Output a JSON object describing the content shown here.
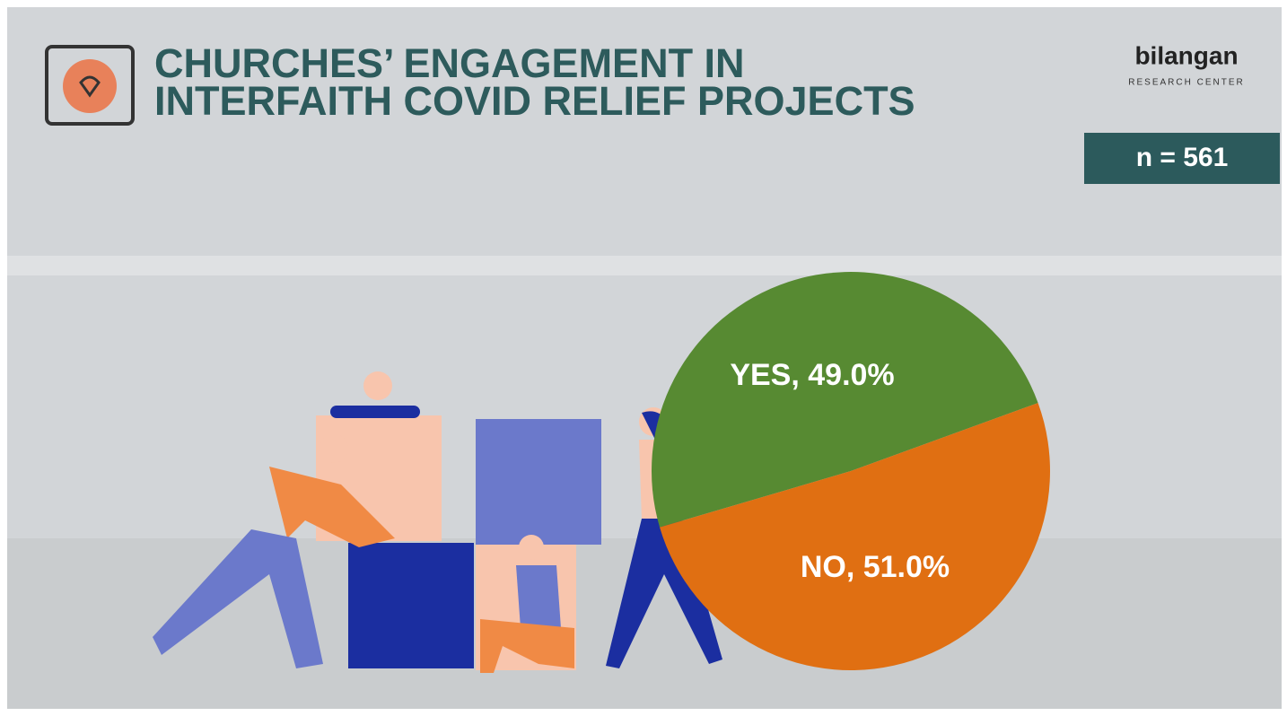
{
  "chart_data": {
    "type": "pie",
    "title": [
      "CHURCHES’ ENGAGEMENT IN",
      "INTERFAITH COVID RELIEF PROJECTS"
    ],
    "annotation": "n = 561",
    "values": [
      49.0,
      51.0
    ],
    "value_labels": [
      "YES, 49.0%",
      "NO, 51.0%"
    ],
    "colors": [
      "#578a32",
      "#e06f12"
    ]
  },
  "logo": {
    "name": "bilangan",
    "subtitle": "RESEARCH CENTER"
  }
}
